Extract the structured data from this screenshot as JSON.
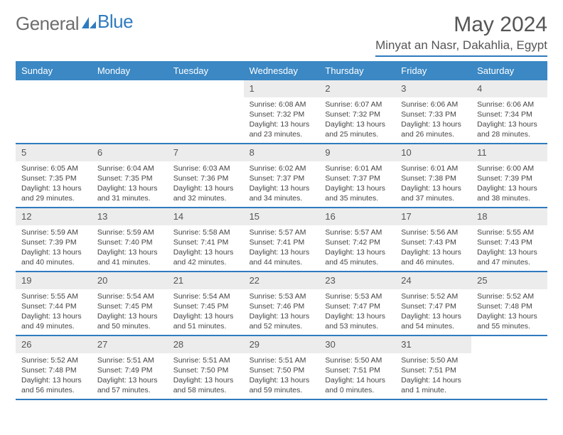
{
  "logo": {
    "text1": "General",
    "text2": "Blue"
  },
  "title": "May 2024",
  "location": "Minyat an Nasr, Dakahlia, Egypt",
  "colors": {
    "header_bg": "#3b88c4",
    "rule": "#2f7bbf",
    "daynum_bg": "#ececec",
    "text": "#444444",
    "title_text": "#555555"
  },
  "day_labels": [
    "Sunday",
    "Monday",
    "Tuesday",
    "Wednesday",
    "Thursday",
    "Friday",
    "Saturday"
  ],
  "weeks": [
    [
      null,
      null,
      null,
      {
        "n": "1",
        "sr": "6:08 AM",
        "ss": "7:32 PM",
        "dl": "13 hours and 23 minutes."
      },
      {
        "n": "2",
        "sr": "6:07 AM",
        "ss": "7:32 PM",
        "dl": "13 hours and 25 minutes."
      },
      {
        "n": "3",
        "sr": "6:06 AM",
        "ss": "7:33 PM",
        "dl": "13 hours and 26 minutes."
      },
      {
        "n": "4",
        "sr": "6:06 AM",
        "ss": "7:34 PM",
        "dl": "13 hours and 28 minutes."
      }
    ],
    [
      {
        "n": "5",
        "sr": "6:05 AM",
        "ss": "7:35 PM",
        "dl": "13 hours and 29 minutes."
      },
      {
        "n": "6",
        "sr": "6:04 AM",
        "ss": "7:35 PM",
        "dl": "13 hours and 31 minutes."
      },
      {
        "n": "7",
        "sr": "6:03 AM",
        "ss": "7:36 PM",
        "dl": "13 hours and 32 minutes."
      },
      {
        "n": "8",
        "sr": "6:02 AM",
        "ss": "7:37 PM",
        "dl": "13 hours and 34 minutes."
      },
      {
        "n": "9",
        "sr": "6:01 AM",
        "ss": "7:37 PM",
        "dl": "13 hours and 35 minutes."
      },
      {
        "n": "10",
        "sr": "6:01 AM",
        "ss": "7:38 PM",
        "dl": "13 hours and 37 minutes."
      },
      {
        "n": "11",
        "sr": "6:00 AM",
        "ss": "7:39 PM",
        "dl": "13 hours and 38 minutes."
      }
    ],
    [
      {
        "n": "12",
        "sr": "5:59 AM",
        "ss": "7:39 PM",
        "dl": "13 hours and 40 minutes."
      },
      {
        "n": "13",
        "sr": "5:59 AM",
        "ss": "7:40 PM",
        "dl": "13 hours and 41 minutes."
      },
      {
        "n": "14",
        "sr": "5:58 AM",
        "ss": "7:41 PM",
        "dl": "13 hours and 42 minutes."
      },
      {
        "n": "15",
        "sr": "5:57 AM",
        "ss": "7:41 PM",
        "dl": "13 hours and 44 minutes."
      },
      {
        "n": "16",
        "sr": "5:57 AM",
        "ss": "7:42 PM",
        "dl": "13 hours and 45 minutes."
      },
      {
        "n": "17",
        "sr": "5:56 AM",
        "ss": "7:43 PM",
        "dl": "13 hours and 46 minutes."
      },
      {
        "n": "18",
        "sr": "5:55 AM",
        "ss": "7:43 PM",
        "dl": "13 hours and 47 minutes."
      }
    ],
    [
      {
        "n": "19",
        "sr": "5:55 AM",
        "ss": "7:44 PM",
        "dl": "13 hours and 49 minutes."
      },
      {
        "n": "20",
        "sr": "5:54 AM",
        "ss": "7:45 PM",
        "dl": "13 hours and 50 minutes."
      },
      {
        "n": "21",
        "sr": "5:54 AM",
        "ss": "7:45 PM",
        "dl": "13 hours and 51 minutes."
      },
      {
        "n": "22",
        "sr": "5:53 AM",
        "ss": "7:46 PM",
        "dl": "13 hours and 52 minutes."
      },
      {
        "n": "23",
        "sr": "5:53 AM",
        "ss": "7:47 PM",
        "dl": "13 hours and 53 minutes."
      },
      {
        "n": "24",
        "sr": "5:52 AM",
        "ss": "7:47 PM",
        "dl": "13 hours and 54 minutes."
      },
      {
        "n": "25",
        "sr": "5:52 AM",
        "ss": "7:48 PM",
        "dl": "13 hours and 55 minutes."
      }
    ],
    [
      {
        "n": "26",
        "sr": "5:52 AM",
        "ss": "7:48 PM",
        "dl": "13 hours and 56 minutes."
      },
      {
        "n": "27",
        "sr": "5:51 AM",
        "ss": "7:49 PM",
        "dl": "13 hours and 57 minutes."
      },
      {
        "n": "28",
        "sr": "5:51 AM",
        "ss": "7:50 PM",
        "dl": "13 hours and 58 minutes."
      },
      {
        "n": "29",
        "sr": "5:51 AM",
        "ss": "7:50 PM",
        "dl": "13 hours and 59 minutes."
      },
      {
        "n": "30",
        "sr": "5:50 AM",
        "ss": "7:51 PM",
        "dl": "14 hours and 0 minutes."
      },
      {
        "n": "31",
        "sr": "5:50 AM",
        "ss": "7:51 PM",
        "dl": "14 hours and 1 minute."
      },
      null
    ]
  ],
  "labels": {
    "sunrise": "Sunrise:",
    "sunset": "Sunset:",
    "daylight": "Daylight:"
  }
}
